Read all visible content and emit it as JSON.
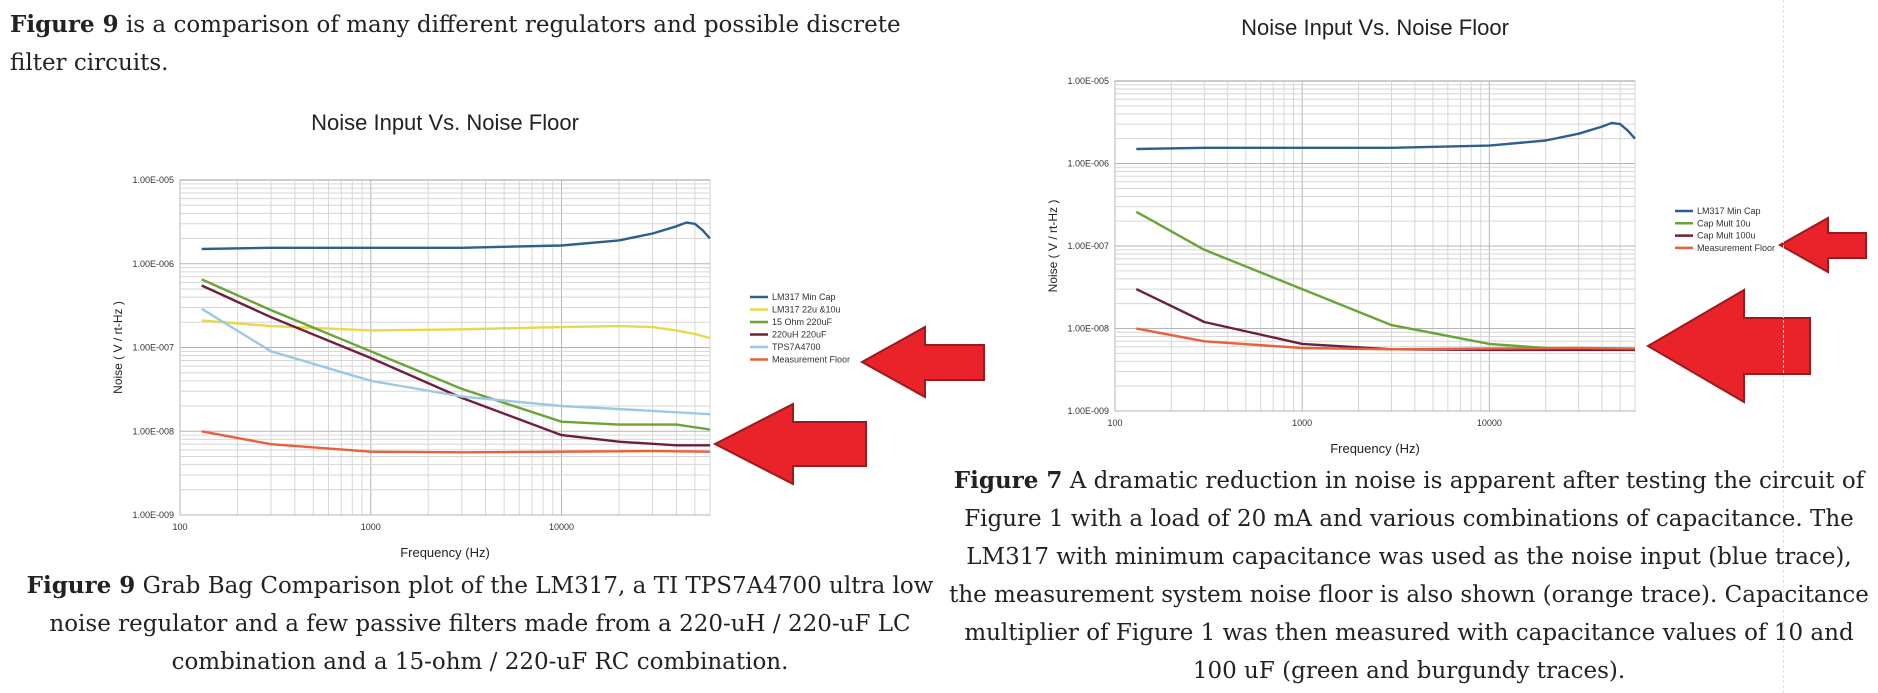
{
  "intro": {
    "label": "Figure 9",
    "text": " is a comparison of many different regulators and possible discrete filter circuits."
  },
  "captions": {
    "fig9": {
      "label": "Figure 9",
      "text": " Grab Bag Comparison plot of the LM317, a TI TPS7A4700 ultra low noise regulator and a few passive filters made from a 220-uH / 220-uF LC combination and a 15-ohm / 220-uF RC combination."
    },
    "fig7": {
      "label": "Figure 7",
      "text": " A dramatic reduction in noise is apparent after testing the circuit of Figure 1 with a load of 20 mA and various combinations of capacitance. The LM317 with minimum capacitance was used as the noise input (blue trace), the measurement system noise floor is also shown (orange trace). Capacitance multiplier of Figure 1 was then measured with capacitance values of 10 and 100 uF (green and burgundy traces)."
    }
  },
  "chart_data": [
    {
      "type": "line",
      "title": "Noise Input Vs. Noise Floor",
      "xlabel": "Frequency (Hz)",
      "ylabel": "Noise ( V / rt-Hz )",
      "x_scale": "log",
      "y_scale": "log",
      "xlim": [
        100,
        60000
      ],
      "ylim": [
        1e-09,
        1e-05
      ],
      "x_ticks": [
        "100",
        "1000",
        "10000"
      ],
      "y_ticks": [
        "1.00E-005",
        "1.00E-006",
        "1.00E-007",
        "1.00E-008",
        "1.00E-009"
      ],
      "grid": true,
      "legend_position": "right",
      "series": [
        {
          "name": "LM317 Min Cap",
          "color": "#2e5f8e",
          "x": [
            130,
            300,
            1000,
            3000,
            10000,
            20000,
            30000,
            40000,
            45000,
            50000,
            55000,
            60000
          ],
          "y": [
            1.5e-06,
            1.55e-06,
            1.55e-06,
            1.55e-06,
            1.65e-06,
            1.9e-06,
            2.3e-06,
            2.8e-06,
            3.1e-06,
            3e-06,
            2.5e-06,
            2e-06
          ]
        },
        {
          "name": "LM317 22u &10u",
          "color": "#e8d84a",
          "x": [
            130,
            300,
            1000,
            3000,
            10000,
            20000,
            30000,
            40000,
            50000,
            60000
          ],
          "y": [
            2.1e-07,
            1.8e-07,
            1.6e-07,
            1.65e-07,
            1.75e-07,
            1.8e-07,
            1.75e-07,
            1.6e-07,
            1.45e-07,
            1.3e-07
          ]
        },
        {
          "name": "15 Ohm 220uF",
          "color": "#6aa436",
          "x": [
            130,
            300,
            1000,
            3000,
            10000,
            20000,
            40000,
            60000
          ],
          "y": [
            6.5e-07,
            2.8e-07,
            9e-08,
            3.2e-08,
            1.3e-08,
            1.2e-08,
            1.2e-08,
            1.05e-08
          ]
        },
        {
          "name": "220uH 220uF",
          "color": "#6e1f3c",
          "x": [
            130,
            300,
            1000,
            3000,
            10000,
            20000,
            40000,
            60000
          ],
          "y": [
            5.5e-07,
            2.3e-07,
            7.5e-08,
            2.5e-08,
            9e-09,
            7.5e-09,
            6.8e-09,
            6.8e-09
          ]
        },
        {
          "name": "TPS7A4700",
          "color": "#9cc8e6",
          "x": [
            130,
            300,
            1000,
            3000,
            10000,
            30000,
            60000
          ],
          "y": [
            2.9e-07,
            9e-08,
            4e-08,
            2.6e-08,
            2e-08,
            1.75e-08,
            1.6e-08
          ]
        },
        {
          "name": "Measurement Floor",
          "color": "#e8603c",
          "x": [
            130,
            300,
            1000,
            3000,
            10000,
            30000,
            60000
          ],
          "y": [
            1e-08,
            7e-09,
            5.7e-09,
            5.6e-09,
            5.7e-09,
            5.8e-09,
            5.7e-09
          ]
        }
      ]
    },
    {
      "type": "line",
      "title": "Noise Input Vs. Noise Floor",
      "xlabel": "Frequency (Hz)",
      "ylabel": "Noise ( V / rt-Hz )",
      "x_scale": "log",
      "y_scale": "log",
      "xlim": [
        100,
        60000
      ],
      "ylim": [
        1e-09,
        1e-05
      ],
      "x_ticks": [
        "100",
        "1000",
        "10000"
      ],
      "y_ticks": [
        "1.00E-005",
        "1.00E-006",
        "1.00E-007",
        "1.00E-008",
        "1.00E-009"
      ],
      "grid": true,
      "legend_position": "right",
      "series": [
        {
          "name": "LM317 Min Cap",
          "color": "#2e5f8e",
          "x": [
            130,
            300,
            1000,
            3000,
            10000,
            20000,
            30000,
            40000,
            45000,
            50000,
            55000,
            60000
          ],
          "y": [
            1.5e-06,
            1.55e-06,
            1.55e-06,
            1.55e-06,
            1.65e-06,
            1.9e-06,
            2.3e-06,
            2.8e-06,
            3.1e-06,
            3e-06,
            2.5e-06,
            2e-06
          ]
        },
        {
          "name": "Cap Mult 10u",
          "color": "#6aa436",
          "x": [
            130,
            300,
            1000,
            3000,
            10000,
            20000,
            40000,
            60000
          ],
          "y": [
            2.6e-07,
            9e-08,
            3e-08,
            1.1e-08,
            6.5e-09,
            5.8e-09,
            5.7e-09,
            5.6e-09
          ]
        },
        {
          "name": "Cap Mult 100u",
          "color": "#6e1f3c",
          "x": [
            130,
            300,
            1000,
            3000,
            10000,
            30000,
            60000
          ],
          "y": [
            3e-08,
            1.2e-08,
            6.5e-09,
            5.6e-09,
            5.5e-09,
            5.5e-09,
            5.5e-09
          ]
        },
        {
          "name": "Measurement Floor",
          "color": "#e8603c",
          "x": [
            130,
            300,
            1000,
            3000,
            10000,
            30000,
            60000
          ],
          "y": [
            1e-08,
            7e-09,
            5.8e-09,
            5.6e-09,
            5.7e-09,
            5.8e-09,
            5.7e-09
          ]
        }
      ]
    }
  ]
}
